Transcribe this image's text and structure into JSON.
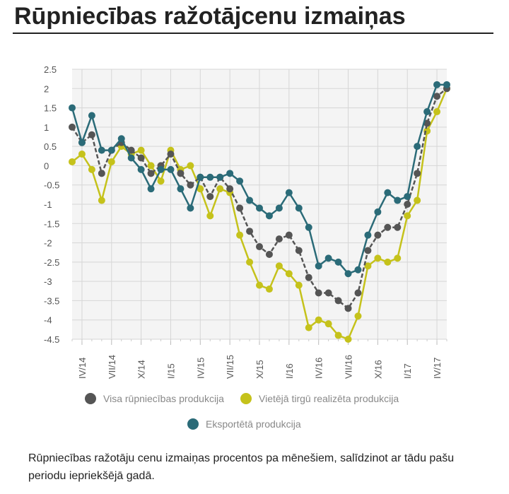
{
  "header": {
    "title": "Rūpniecības ražotājcenu izmaiņas"
  },
  "caption": "Rūpniecības ražotāju cenu izmaiņas procentos pa mēnešiem, salīdzinot ar tādu pašu periodu iepriekšējā gadā.",
  "chart_data": {
    "type": "line",
    "title": "Rūpniecības ražotājcenu izmaiņas",
    "ylim": [
      -4.5,
      2.5
    ],
    "yticks": [
      "2.5",
      "2",
      "1.5",
      "1",
      "0.5",
      "0",
      "-0.5",
      "-1",
      "-1.5",
      "-2",
      "-2.5",
      "-3",
      "-3.5",
      "-4",
      "-4.5"
    ],
    "x_labels": [
      {
        "index": 1,
        "label": "IV/14"
      },
      {
        "index": 4,
        "label": "VII/14"
      },
      {
        "index": 7,
        "label": "X/14"
      },
      {
        "index": 10,
        "label": "I/15"
      },
      {
        "index": 13,
        "label": "IV/15"
      },
      {
        "index": 16,
        "label": "VII/15"
      },
      {
        "index": 19,
        "label": "X/15"
      },
      {
        "index": 22,
        "label": "I/16"
      },
      {
        "index": 25,
        "label": "IV/16"
      },
      {
        "index": 28,
        "label": "VII/16"
      },
      {
        "index": 31,
        "label": "X/16"
      },
      {
        "index": 34,
        "label": "I/17"
      },
      {
        "index": 37,
        "label": "IV/17"
      }
    ],
    "grid": true,
    "legend_position": "bottom",
    "series": [
      {
        "name": "Visa rūpniecības produkcija",
        "color": "#555555",
        "values": [
          1.0,
          0.6,
          0.8,
          -0.2,
          0.4,
          0.6,
          0.4,
          0.2,
          -0.2,
          0.0,
          0.3,
          -0.2,
          -0.5,
          -0.3,
          -0.8,
          -0.3,
          -0.6,
          -1.1,
          -1.7,
          -2.1,
          -2.3,
          -1.9,
          -1.8,
          -2.2,
          -2.9,
          -3.3,
          -3.3,
          -3.5,
          -3.7,
          -3.3,
          -2.2,
          -1.8,
          -1.6,
          -1.6,
          -1.0,
          -0.2,
          1.1,
          1.8,
          2.0
        ]
      },
      {
        "name": "Vietējā tirgū realizēta produkcija",
        "color": "#c5c21b",
        "values": [
          0.1,
          0.3,
          -0.1,
          -0.9,
          0.1,
          0.5,
          0.3,
          0.4,
          0.0,
          -0.4,
          0.4,
          -0.1,
          0.0,
          -0.6,
          -1.3,
          -0.6,
          -0.7,
          -1.8,
          -2.5,
          -3.1,
          -3.2,
          -2.6,
          -2.8,
          -3.1,
          -4.2,
          -4.0,
          -4.1,
          -4.4,
          -4.5,
          -3.9,
          -2.6,
          -2.4,
          -2.5,
          -2.4,
          -1.3,
          -0.9,
          0.9,
          1.4,
          2.0
        ]
      },
      {
        "name": "Eksportētā produkcija",
        "color": "#2b6b78",
        "values": [
          1.5,
          0.6,
          1.3,
          0.4,
          0.4,
          0.7,
          0.2,
          -0.1,
          -0.6,
          -0.1,
          -0.1,
          -0.6,
          -1.1,
          -0.3,
          -0.3,
          -0.3,
          -0.2,
          -0.4,
          -0.9,
          -1.1,
          -1.3,
          -1.1,
          -0.7,
          -1.1,
          -1.6,
          -2.6,
          -2.4,
          -2.5,
          -2.8,
          -2.7,
          -1.8,
          -1.2,
          -0.7,
          -0.9,
          -0.8,
          0.5,
          1.4,
          2.1,
          2.1
        ]
      }
    ]
  }
}
